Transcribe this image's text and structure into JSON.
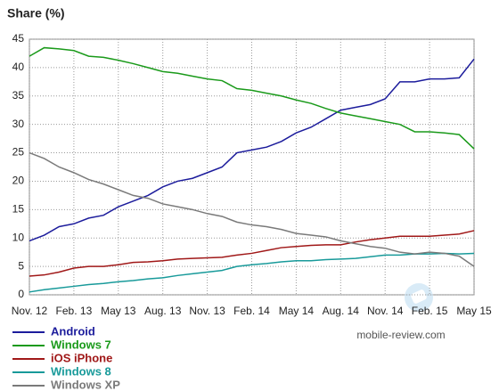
{
  "chart_data": {
    "type": "line",
    "title": "Share (%)",
    "categories": [
      "Nov. 12",
      null,
      null,
      "Feb. 13",
      null,
      null,
      "May 13",
      null,
      null,
      "Aug. 13",
      null,
      null,
      "Nov. 13",
      null,
      null,
      "Feb. 14",
      null,
      null,
      "May 14",
      null,
      null,
      "Aug. 14",
      null,
      null,
      "Nov. 14",
      null,
      null,
      "Feb. 15",
      null,
      null,
      "May 15"
    ],
    "series": [
      {
        "name": "Android",
        "color": "#1c1c9c",
        "values": [
          9.5,
          10.5,
          12,
          12.5,
          13.5,
          14,
          15.5,
          16.5,
          17.5,
          19,
          20,
          20.5,
          21.5,
          22.5,
          25,
          25.5,
          26,
          27,
          28.5,
          29.5,
          31,
          32.5,
          33,
          33.5,
          34.5,
          37.5,
          37.5,
          38,
          38,
          38.2,
          41.5
        ]
      },
      {
        "name": "Windows 7",
        "color": "#1a9a1a",
        "values": [
          42,
          43.5,
          43.3,
          43,
          42,
          41.8,
          41.3,
          40.7,
          40,
          39.3,
          39,
          38.5,
          38,
          37.7,
          36.3,
          36,
          35.5,
          35,
          34.3,
          33.7,
          32.8,
          32,
          31.5,
          31,
          30.5,
          30,
          28.7,
          28.7,
          28.5,
          28.2,
          25.7
        ]
      },
      {
        "name": "iOS iPhone",
        "color": "#a01818",
        "values": [
          3.3,
          3.5,
          4,
          4.7,
          5,
          5,
          5.3,
          5.7,
          5.8,
          6,
          6.3,
          6.4,
          6.5,
          6.6,
          7,
          7.3,
          7.8,
          8.3,
          8.5,
          8.7,
          8.8,
          8.8,
          9.3,
          9.7,
          10,
          10.3,
          10.3,
          10.3,
          10.5,
          10.7,
          11.3
        ]
      },
      {
        "name": "Windows 8",
        "color": "#189a9a",
        "values": [
          0.5,
          0.9,
          1.2,
          1.5,
          1.8,
          2,
          2.3,
          2.5,
          2.8,
          3,
          3.4,
          3.7,
          4,
          4.3,
          5,
          5.3,
          5.5,
          5.8,
          6,
          6,
          6.2,
          6.3,
          6.4,
          6.7,
          7,
          7,
          7.2,
          7.2,
          7.3,
          7.2,
          7.3
        ]
      },
      {
        "name": "Windows XP",
        "color": "#7a7a7a",
        "values": [
          25,
          24,
          22.5,
          21.5,
          20.3,
          19.5,
          18.5,
          17.5,
          17,
          16,
          15.5,
          15,
          14.3,
          13.8,
          12.8,
          12.3,
          12,
          11.5,
          10.8,
          10.5,
          10.2,
          9.5,
          9,
          8.5,
          8.2,
          7.5,
          7.2,
          7.5,
          7.3,
          6.8,
          5
        ]
      }
    ],
    "ylim": [
      0,
      45
    ],
    "yticks": [
      0,
      5,
      10,
      15,
      20,
      25,
      30,
      35,
      40,
      45
    ],
    "grid": true,
    "watermark": "mobile-review.com"
  }
}
